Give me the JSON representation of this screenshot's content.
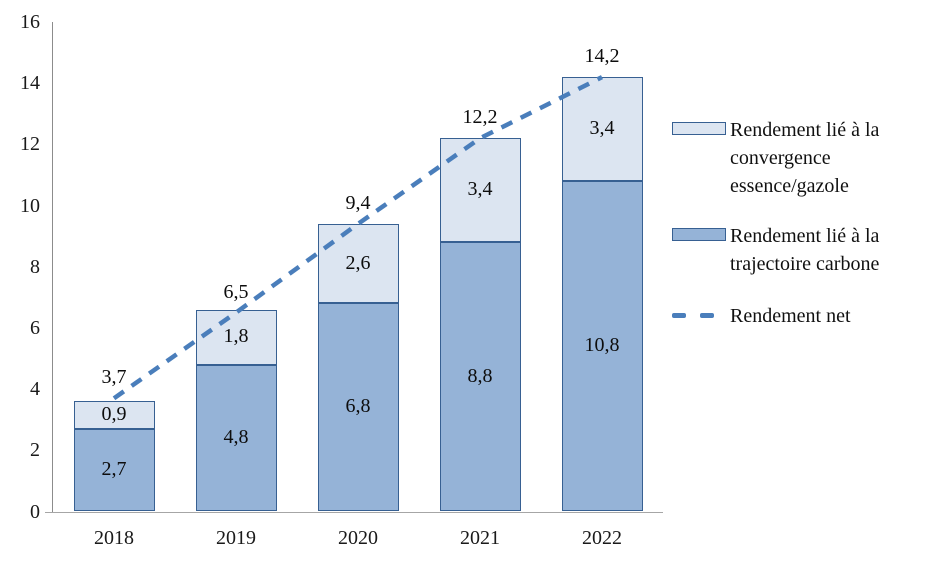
{
  "chart_data": {
    "type": "bar",
    "stacked": true,
    "title": "",
    "xlabel": "",
    "ylabel": "",
    "categories": [
      "2018",
      "2019",
      "2020",
      "2021",
      "2022"
    ],
    "series": [
      {
        "name": "Rendement lié à la trajectoire carbone",
        "values": [
          2.7,
          4.8,
          6.8,
          8.8,
          10.8
        ],
        "labels": [
          "2,7",
          "4,8",
          "6,8",
          "8,8",
          "10,8"
        ],
        "color": "#95B3D7"
      },
      {
        "name": "Rendement lié à la convergence essence/gazole",
        "values": [
          0.9,
          1.8,
          2.6,
          3.4,
          3.4
        ],
        "labels": [
          "0,9",
          "1,8",
          "2,6",
          "3,4",
          "3,4"
        ],
        "color": "#DCE5F1"
      }
    ],
    "line_series": {
      "name": "Rendement net",
      "values": [
        3.7,
        6.5,
        9.4,
        12.2,
        14.2
      ],
      "labels": [
        "3,7",
        "6,5",
        "9,4",
        "12,2",
        "14,2"
      ],
      "color": "#4A7EBB",
      "style": "dashed"
    },
    "ylim": [
      0,
      16
    ],
    "yticks": [
      0,
      2,
      4,
      6,
      8,
      10,
      12,
      14,
      16
    ],
    "grid": false,
    "legend_position": "right",
    "bar_border_color": "#376092",
    "y_axis_color": "#8C8C8C",
    "x_axis_color": "#A6A6A6"
  },
  "legend": {
    "items": [
      {
        "label": "Rendement lié à la convergence essence/gazole",
        "marker": "light-swatch"
      },
      {
        "label": "Rendement lié à la trajectoire carbone",
        "marker": "dark-swatch"
      },
      {
        "label": "Rendement net",
        "marker": "dashed-line"
      }
    ]
  }
}
